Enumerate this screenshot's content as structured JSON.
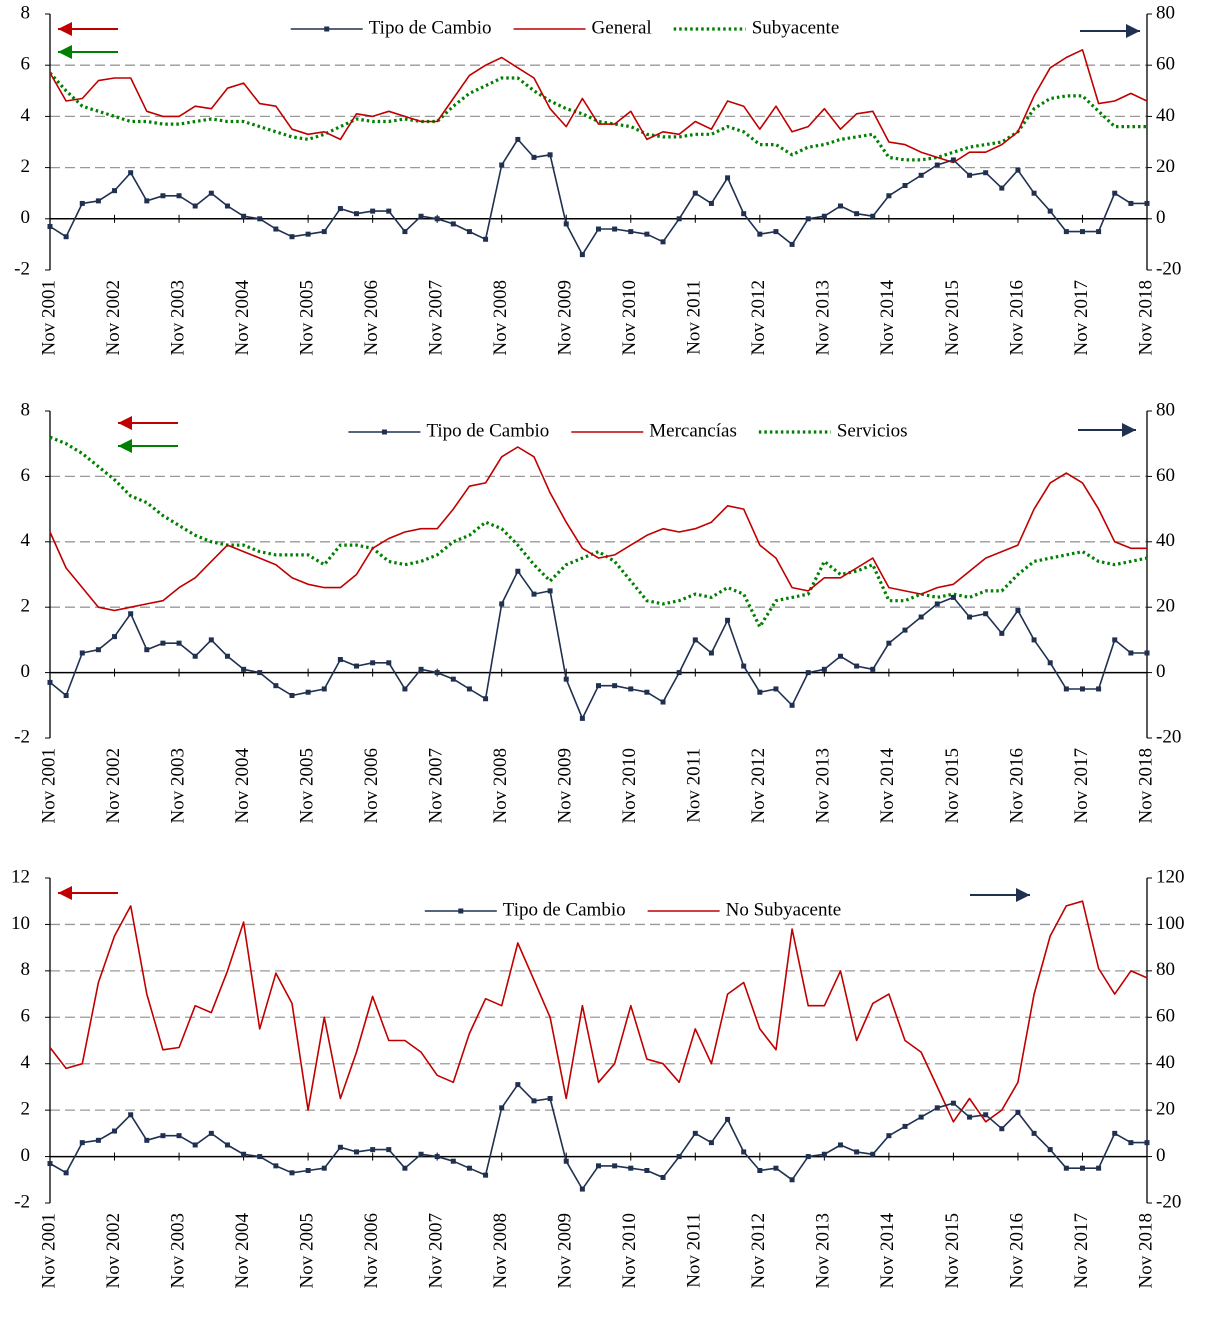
{
  "chart_data": [
    {
      "type": "line",
      "categories": [
        "Nov 2001",
        null,
        null,
        null,
        "Nov 2002",
        null,
        null,
        null,
        "Nov 2003",
        null,
        null,
        null,
        "Nov 2004",
        null,
        null,
        null,
        "Nov 2005",
        null,
        null,
        null,
        "Nov 2006",
        null,
        null,
        null,
        "Nov 2007",
        null,
        null,
        null,
        "Nov 2008",
        null,
        null,
        null,
        "Nov 2009",
        null,
        null,
        null,
        "Nov 2010",
        null,
        null,
        null,
        "Nov 2011",
        null,
        null,
        null,
        "Nov 2012",
        null,
        null,
        null,
        "Nov 2013",
        null,
        null,
        null,
        "Nov 2014",
        null,
        null,
        null,
        "Nov 2015",
        null,
        null,
        null,
        "Nov 2016",
        null,
        null,
        null,
        "Nov 2017",
        null,
        null,
        null,
        "Nov 2018"
      ],
      "series": [
        {
          "name": "Tipo de Cambio",
          "color": "#1f3050",
          "axis": "y2",
          "marker": "square",
          "dash": "solid",
          "values": [
            -3,
            -7,
            6,
            7,
            11,
            18,
            7,
            9,
            9,
            5,
            10,
            5,
            1,
            0,
            -4,
            -7,
            -6,
            -5,
            4,
            2,
            3,
            3,
            -5,
            1,
            0,
            -2,
            -5,
            -8,
            21,
            31,
            24,
            25,
            -2,
            -14,
            -4,
            -4,
            -5,
            -6,
            -9,
            0,
            10,
            6,
            16,
            2,
            -6,
            -5,
            -10,
            0,
            1,
            5,
            2,
            1,
            9,
            13,
            17,
            21,
            23,
            17,
            18,
            12,
            19,
            10,
            3,
            -5,
            -5,
            -5,
            10,
            6,
            6
          ]
        },
        {
          "name": "General",
          "color": "#c00000",
          "axis": "y",
          "marker": "none",
          "dash": "solid",
          "values": [
            5.7,
            4.6,
            4.7,
            5.4,
            5.5,
            5.5,
            4.2,
            4.0,
            4.0,
            4.4,
            4.3,
            5.1,
            5.3,
            4.5,
            4.4,
            3.5,
            3.3,
            3.4,
            3.1,
            4.1,
            4.0,
            4.2,
            4.0,
            3.8,
            3.8,
            4.7,
            5.6,
            6.0,
            6.3,
            5.9,
            5.5,
            4.3,
            3.6,
            4.7,
            3.7,
            3.7,
            4.2,
            3.1,
            3.4,
            3.3,
            3.8,
            3.5,
            4.6,
            4.4,
            3.5,
            4.4,
            3.4,
            3.6,
            4.3,
            3.5,
            4.1,
            4.2,
            3.0,
            2.9,
            2.6,
            2.4,
            2.2,
            2.6,
            2.6,
            2.9,
            3.4,
            4.8,
            5.9,
            6.3,
            6.6,
            4.5,
            4.6,
            4.9,
            4.6
          ]
        },
        {
          "name": "Subyacente",
          "color": "#008000",
          "axis": "y",
          "marker": "none",
          "dash": "dotted",
          "values": [
            5.7,
            5.0,
            4.4,
            4.2,
            4.0,
            3.8,
            3.8,
            3.7,
            3.7,
            3.8,
            3.9,
            3.8,
            3.8,
            3.6,
            3.4,
            3.2,
            3.1,
            3.3,
            3.6,
            3.9,
            3.8,
            3.8,
            3.9,
            3.8,
            3.8,
            4.4,
            4.9,
            5.2,
            5.5,
            5.5,
            5.0,
            4.6,
            4.3,
            4.1,
            3.8,
            3.7,
            3.6,
            3.3,
            3.2,
            3.2,
            3.3,
            3.3,
            3.6,
            3.4,
            2.9,
            2.9,
            2.5,
            2.8,
            2.9,
            3.1,
            3.2,
            3.3,
            2.4,
            2.3,
            2.3,
            2.4,
            2.6,
            2.8,
            2.9,
            3.0,
            3.4,
            4.3,
            4.7,
            4.8,
            4.8,
            4.2,
            3.6,
            3.6,
            3.6
          ]
        }
      ],
      "ylim": [
        -2,
        8
      ],
      "yticks": [
        -2,
        0,
        2,
        4,
        6,
        8
      ],
      "y2lim": [
        -20,
        80
      ],
      "y2ticks": [
        -20,
        0,
        20,
        40,
        60,
        80
      ],
      "grid": true
    },
    {
      "type": "line",
      "categories": [
        "Nov 2001",
        null,
        null,
        null,
        "Nov 2002",
        null,
        null,
        null,
        "Nov 2003",
        null,
        null,
        null,
        "Nov 2004",
        null,
        null,
        null,
        "Nov 2005",
        null,
        null,
        null,
        "Nov 2006",
        null,
        null,
        null,
        "Nov 2007",
        null,
        null,
        null,
        "Nov 2008",
        null,
        null,
        null,
        "Nov 2009",
        null,
        null,
        null,
        "Nov 2010",
        null,
        null,
        null,
        "Nov 2011",
        null,
        null,
        null,
        "Nov 2012",
        null,
        null,
        null,
        "Nov 2013",
        null,
        null,
        null,
        "Nov 2014",
        null,
        null,
        null,
        "Nov 2015",
        null,
        null,
        null,
        "Nov 2016",
        null,
        null,
        null,
        "Nov 2017",
        null,
        null,
        null,
        "Nov 2018"
      ],
      "series": [
        {
          "name": "Tipo de Cambio",
          "color": "#1f3050",
          "axis": "y2",
          "marker": "square",
          "dash": "solid",
          "values": [
            -3,
            -7,
            6,
            7,
            11,
            18,
            7,
            9,
            9,
            5,
            10,
            5,
            1,
            0,
            -4,
            -7,
            -6,
            -5,
            4,
            2,
            3,
            3,
            -5,
            1,
            0,
            -2,
            -5,
            -8,
            21,
            31,
            24,
            25,
            -2,
            -14,
            -4,
            -4,
            -5,
            -6,
            -9,
            0,
            10,
            6,
            16,
            2,
            -6,
            -5,
            -10,
            0,
            1,
            5,
            2,
            1,
            9,
            13,
            17,
            21,
            23,
            17,
            18,
            12,
            19,
            10,
            3,
            -5,
            -5,
            -5,
            10,
            6,
            6
          ]
        },
        {
          "name": "Mercancías",
          "color": "#c00000",
          "axis": "y",
          "marker": "none",
          "dash": "solid",
          "values": [
            4.3,
            3.2,
            2.6,
            2.0,
            1.9,
            2.0,
            2.1,
            2.2,
            2.6,
            2.9,
            3.4,
            3.9,
            3.7,
            3.5,
            3.3,
            2.9,
            2.7,
            2.6,
            2.6,
            3.0,
            3.8,
            4.1,
            4.3,
            4.4,
            4.4,
            5.0,
            5.7,
            5.8,
            6.6,
            6.9,
            6.6,
            5.5,
            4.6,
            3.8,
            3.5,
            3.6,
            3.9,
            4.2,
            4.4,
            4.3,
            4.4,
            4.6,
            5.1,
            5.0,
            3.9,
            3.5,
            2.6,
            2.5,
            2.9,
            2.9,
            3.2,
            3.5,
            2.6,
            2.5,
            2.4,
            2.6,
            2.7,
            3.1,
            3.5,
            3.7,
            3.9,
            5.0,
            5.8,
            6.1,
            5.8,
            5.0,
            4.0,
            3.8,
            3.8
          ]
        },
        {
          "name": "Servicios",
          "color": "#008000",
          "axis": "y",
          "marker": "none",
          "dash": "dotted",
          "values": [
            7.2,
            7.0,
            6.7,
            6.3,
            5.9,
            5.4,
            5.2,
            4.8,
            4.5,
            4.2,
            4.0,
            3.9,
            3.9,
            3.7,
            3.6,
            3.6,
            3.6,
            3.3,
            3.9,
            3.9,
            3.8,
            3.4,
            3.3,
            3.4,
            3.6,
            4.0,
            4.2,
            4.6,
            4.4,
            3.9,
            3.3,
            2.8,
            3.3,
            3.5,
            3.7,
            3.4,
            2.8,
            2.2,
            2.1,
            2.2,
            2.4,
            2.3,
            2.6,
            2.4,
            1.4,
            2.2,
            2.3,
            2.4,
            3.4,
            3.0,
            3.1,
            3.3,
            2.2,
            2.2,
            2.4,
            2.3,
            2.4,
            2.3,
            2.5,
            2.5,
            3.0,
            3.4,
            3.5,
            3.6,
            3.7,
            3.4,
            3.3,
            3.4,
            3.5
          ]
        }
      ],
      "ylim": [
        -2,
        8
      ],
      "yticks": [
        -2,
        0,
        2,
        4,
        6,
        8
      ],
      "y2lim": [
        -20,
        80
      ],
      "y2ticks": [
        -20,
        0,
        20,
        40,
        60,
        80
      ],
      "grid": true
    },
    {
      "type": "line",
      "categories": [
        "Nov 2001",
        null,
        null,
        null,
        "Nov 2002",
        null,
        null,
        null,
        "Nov 2003",
        null,
        null,
        null,
        "Nov 2004",
        null,
        null,
        null,
        "Nov 2005",
        null,
        null,
        null,
        "Nov 2006",
        null,
        null,
        null,
        "Nov 2007",
        null,
        null,
        null,
        "Nov 2008",
        null,
        null,
        null,
        "Nov 2009",
        null,
        null,
        null,
        "Nov 2010",
        null,
        null,
        null,
        "Nov 2011",
        null,
        null,
        null,
        "Nov 2012",
        null,
        null,
        null,
        "Nov 2013",
        null,
        null,
        null,
        "Nov 2014",
        null,
        null,
        null,
        "Nov 2015",
        null,
        null,
        null,
        "Nov 2016",
        null,
        null,
        null,
        "Nov 2017",
        null,
        null,
        null,
        "Nov 2018"
      ],
      "series": [
        {
          "name": "Tipo de Cambio",
          "color": "#1f3050",
          "axis": "y2",
          "marker": "square",
          "dash": "solid",
          "values": [
            -3,
            -7,
            6,
            7,
            11,
            18,
            7,
            9,
            9,
            5,
            10,
            5,
            1,
            0,
            -4,
            -7,
            -6,
            -5,
            4,
            2,
            3,
            3,
            -5,
            1,
            0,
            -2,
            -5,
            -8,
            21,
            31,
            24,
            25,
            -2,
            -14,
            -4,
            -4,
            -5,
            -6,
            -9,
            0,
            10,
            6,
            16,
            2,
            -6,
            -5,
            -10,
            0,
            1,
            5,
            2,
            1,
            9,
            13,
            17,
            21,
            23,
            17,
            18,
            12,
            19,
            10,
            3,
            -5,
            -5,
            -5,
            10,
            6,
            6
          ]
        },
        {
          "name": "No Subyacente",
          "color": "#c00000",
          "axis": "y",
          "marker": "none",
          "dash": "solid",
          "values": [
            4.7,
            3.8,
            4.0,
            7.5,
            9.5,
            10.8,
            7.0,
            4.6,
            4.7,
            6.5,
            6.2,
            8.0,
            10.1,
            5.5,
            7.9,
            6.6,
            2.0,
            6.0,
            2.5,
            4.5,
            6.9,
            5.0,
            5.0,
            4.5,
            3.5,
            3.2,
            5.3,
            6.8,
            6.5,
            9.2,
            7.6,
            6.0,
            2.5,
            6.5,
            3.2,
            4.0,
            6.5,
            4.2,
            4.0,
            3.2,
            5.5,
            4.0,
            7.0,
            7.5,
            5.5,
            4.6,
            9.8,
            6.5,
            6.5,
            8.0,
            5.0,
            6.6,
            7.0,
            5.0,
            4.5,
            3.0,
            1.5,
            2.5,
            1.5,
            2.0,
            3.2,
            7.0,
            9.5,
            10.8,
            11.0,
            8.1,
            7.0,
            8.0,
            7.7
          ]
        }
      ],
      "ylim": [
        -2,
        12
      ],
      "yticks": [
        -2,
        0,
        2,
        4,
        6,
        8,
        10,
        12
      ],
      "y2lim": [
        -20,
        120
      ],
      "y2ticks": [
        -20,
        0,
        20,
        40,
        60,
        80,
        100,
        120
      ],
      "grid": true
    }
  ]
}
